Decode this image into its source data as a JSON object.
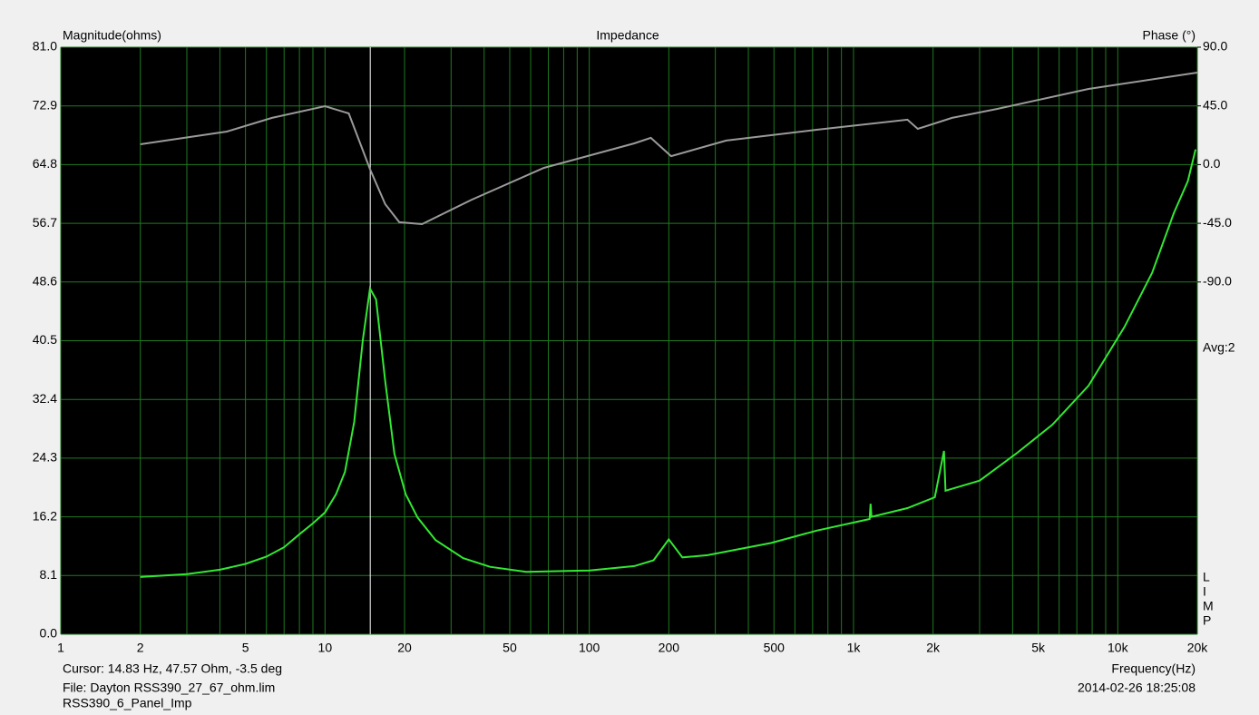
{
  "chart_data": {
    "type": "line",
    "title": "Impedance",
    "ylabel": "Magnitude(ohms)",
    "y2label": "Phase (°)",
    "xlabel": "Frequency(Hz)",
    "xscale": "log",
    "xlim": [
      1,
      20000
    ],
    "xticks": [
      1,
      2,
      5,
      10,
      20,
      50,
      100,
      200,
      500,
      {
        "value": 1000,
        "label": "1k"
      },
      {
        "value": 2000,
        "label": "2k"
      },
      {
        "value": 5000,
        "label": "5k"
      },
      {
        "value": 10000,
        "label": "10k"
      },
      {
        "value": 20000,
        "label": "20k"
      }
    ],
    "xminorticks": [
      3,
      4,
      6,
      7,
      8,
      9,
      30,
      40,
      60,
      70,
      80,
      90,
      300,
      400,
      600,
      700,
      800,
      900,
      3000,
      4000,
      6000,
      7000,
      8000,
      9000
    ],
    "ylim": [
      0,
      81
    ],
    "yticks": [
      {
        "value": 0,
        "label": "0.0"
      },
      8.1,
      16.2,
      24.3,
      32.4,
      40.5,
      48.6,
      56.7,
      64.8,
      72.9,
      {
        "value": 81,
        "label": "81.0"
      }
    ],
    "y2lim": [
      -360,
      90
    ],
    "y2ticks": [
      {
        "value": -90,
        "label": "-90.0"
      },
      {
        "value": -45,
        "label": "-45.0"
      },
      {
        "value": 0,
        "label": "0.0"
      },
      {
        "value": 45,
        "label": "45.0"
      },
      {
        "value": 90,
        "label": "90.0"
      }
    ],
    "grid": true,
    "grid_color": "#1f7a1f",
    "series": [
      {
        "color": "#33e833",
        "x": [
          2,
          3,
          4,
          5,
          6,
          7,
          8,
          9,
          10,
          11,
          11.9,
          12.9,
          13.9,
          14.8,
          15.6,
          16.9,
          18.3,
          20.2,
          22.4,
          26.2,
          33.3,
          42.1,
          57.7,
          100,
          148,
          175,
          200,
          225,
          280,
          488,
          725,
          1150,
          1160,
          1170,
          1600,
          2030,
          2200,
          2230,
          3000,
          4120,
          5650,
          7750,
          10600,
          13500,
          16300,
          18400,
          19700
        ],
        "values": [
          7.9,
          8.3,
          8.9,
          9.7,
          10.7,
          12.0,
          13.8,
          15.3,
          16.8,
          19.3,
          22.4,
          29.3,
          40.6,
          47.7,
          46.2,
          34.9,
          24.9,
          19.3,
          16.1,
          13.0,
          10.5,
          9.3,
          8.6,
          8.8,
          9.4,
          10.2,
          13.1,
          10.6,
          10.9,
          12.6,
          14.3,
          15.9,
          18.0,
          16.2,
          17.4,
          18.9,
          25.3,
          19.8,
          21.2,
          24.9,
          28.9,
          34.3,
          42.4,
          49.9,
          58.1,
          62.5,
          66.9
        ]
      },
      {
        "color": "#9a9a9a",
        "axis": "y2",
        "x": [
          2,
          4.25,
          6.3,
          10,
          12.3,
          14.8,
          16.9,
          19.1,
          23.3,
          35.9,
          67.4,
          148,
          171,
          204,
          330,
          725,
          1600,
          1750,
          2360,
          3500,
          7750,
          20000
        ],
        "values": [
          15.6,
          25.3,
          35.8,
          44.8,
          39.2,
          -3.5,
          -30.3,
          -44.2,
          -45.6,
          -26.9,
          -2.5,
          16.3,
          20.5,
          6.5,
          18.4,
          26.7,
          34.4,
          27.4,
          35.8,
          42.7,
          58.0,
          70.5
        ]
      }
    ],
    "cursor_x": 14.83,
    "side_text": "Avg:2",
    "side_letters": [
      "L",
      "I",
      "M",
      "P"
    ],
    "cursor_text": "Cursor: 14.83 Hz, 47.57 Ohm, -3.5 deg",
    "file_text": "File: Dayton RSS390_27_67_ohm.lim",
    "file_text2": "RSS390_6_Panel_Imp",
    "timestamp": "2014-02-26 18:25:08"
  }
}
